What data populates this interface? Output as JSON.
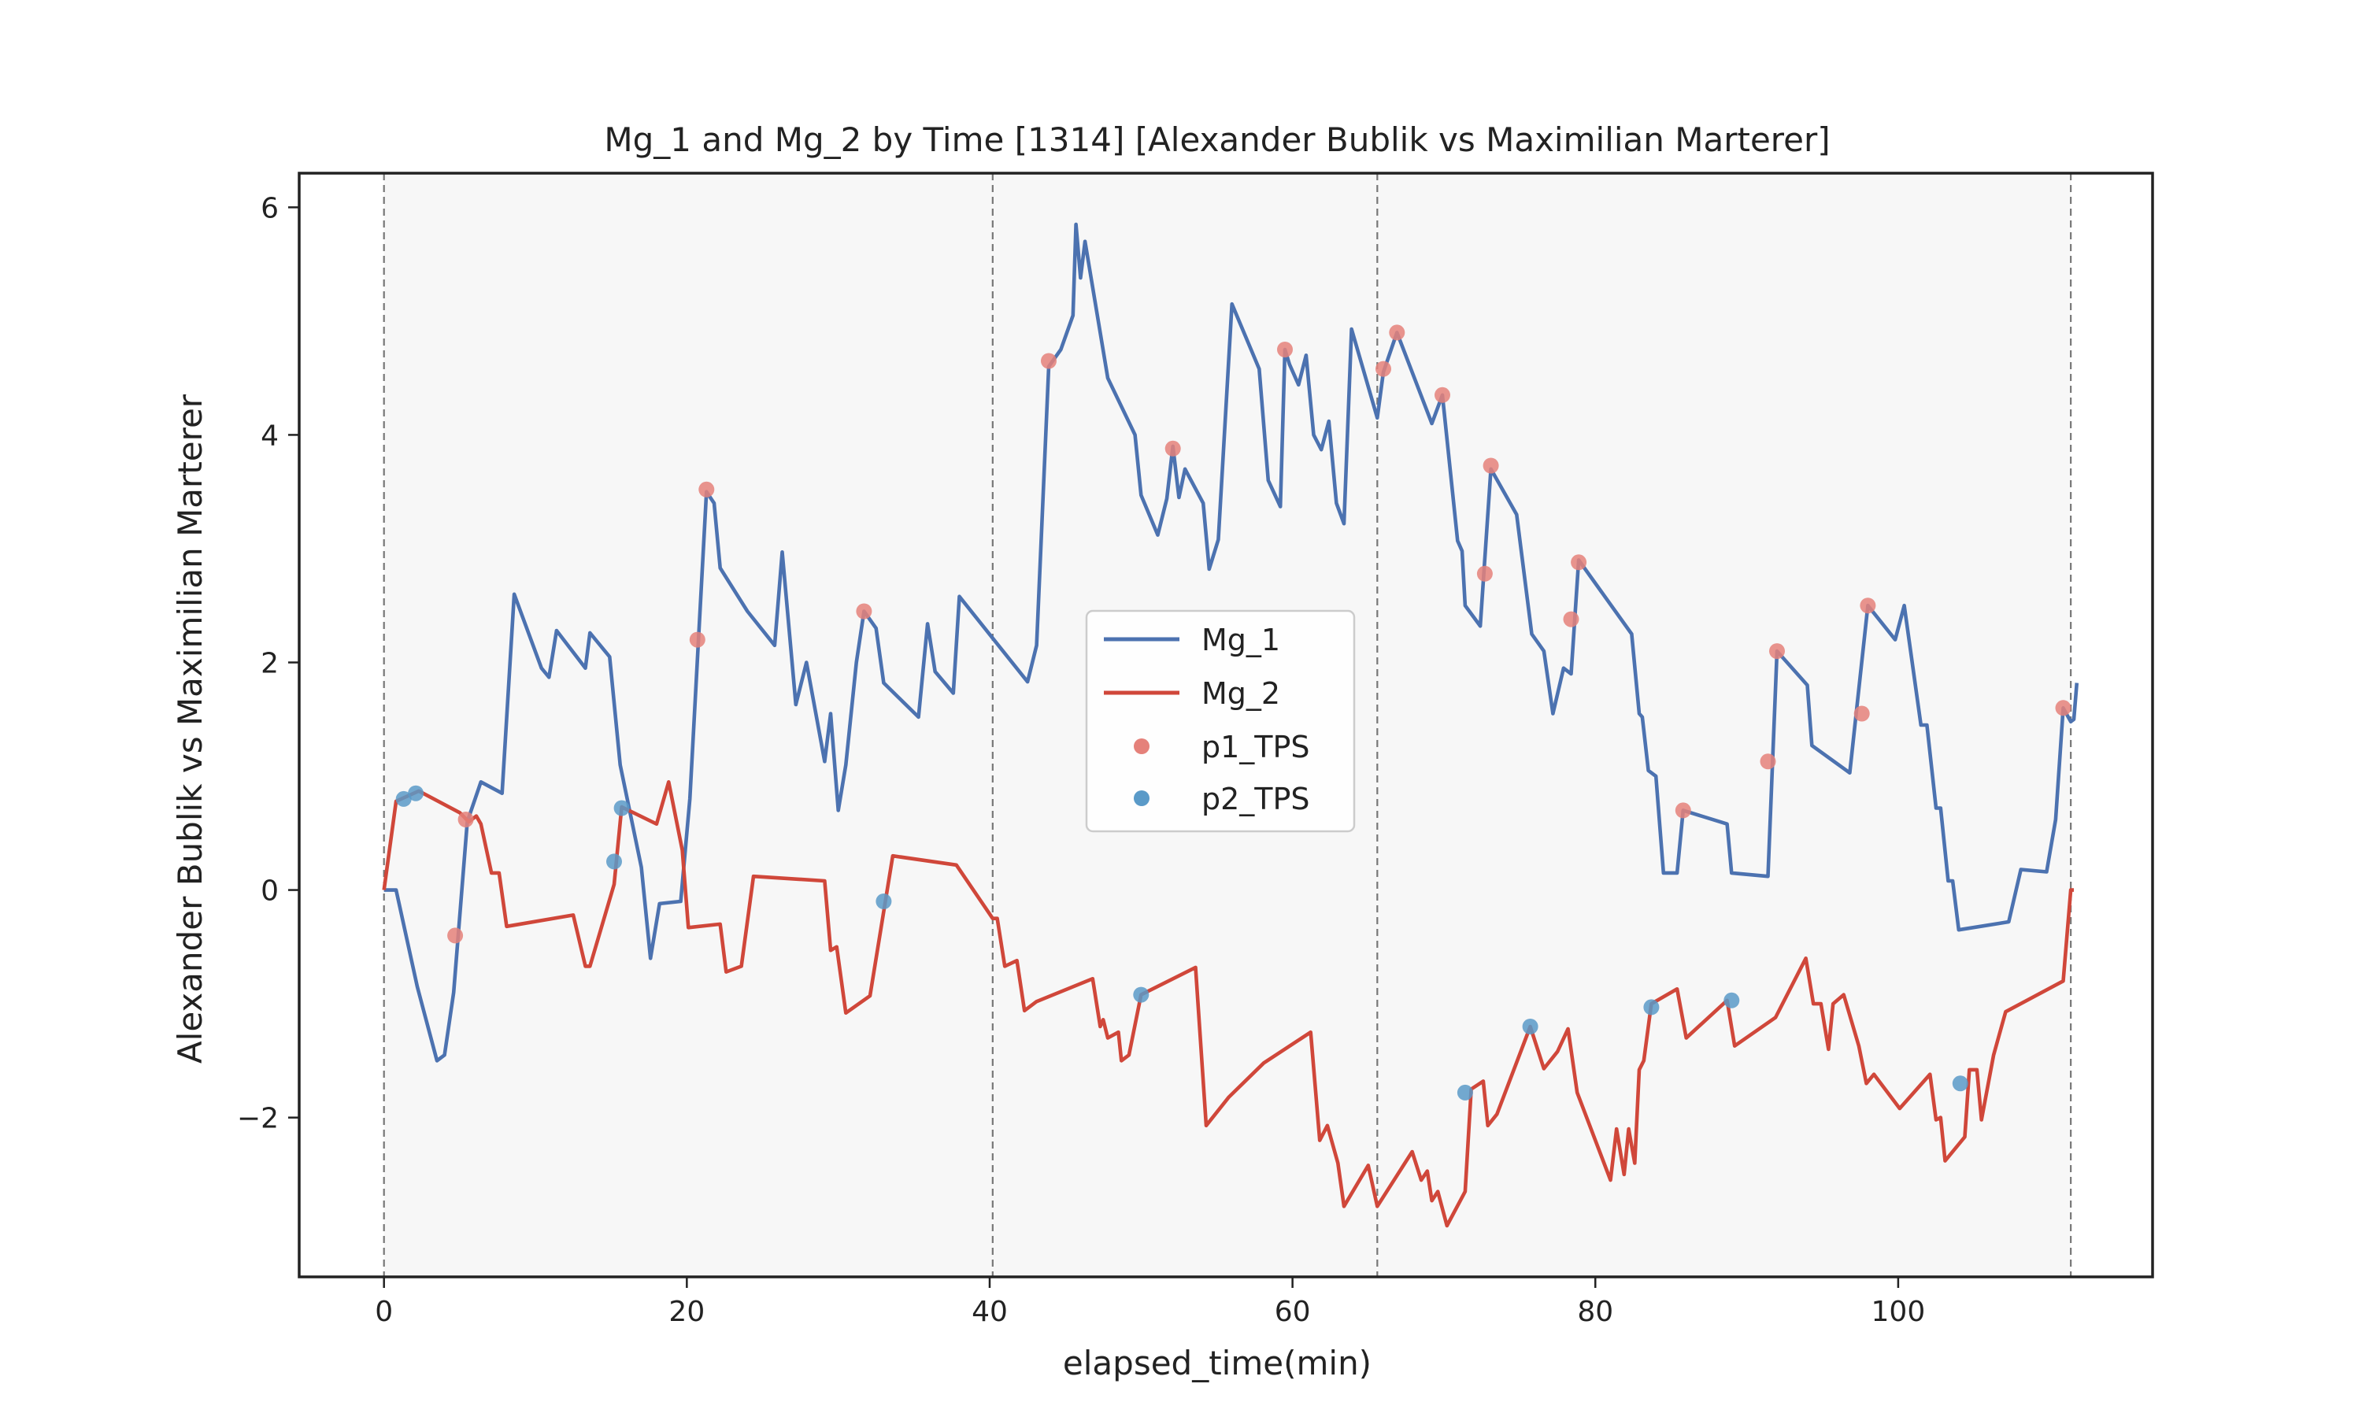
{
  "chart_data": {
    "type": "line",
    "title": "Mg_1 and Mg_2 by Time [1314] [Alexander Bublik vs Maximilian Marterer]",
    "xlabel": "elapsed_time(min)",
    "ylabel": "Alexander Bublik vs Maximilian Marterer",
    "xlim": [
      -5.6,
      116.8
    ],
    "ylim": [
      -3.4,
      6.3
    ],
    "xticks": [
      0,
      20,
      40,
      60,
      80,
      100
    ],
    "yticks": [
      -2,
      0,
      2,
      4,
      6
    ],
    "xtick_labels": [
      "0",
      "20",
      "40",
      "60",
      "80",
      "100"
    ],
    "ytick_labels": [
      "−2",
      "0",
      "2",
      "4",
      "6"
    ],
    "set_boundaries": [
      0,
      40.2,
      65.6,
      111.4
    ],
    "grid": false,
    "legend_position": "center",
    "colors": {
      "mg1": "#4c72b0",
      "mg2": "#d0473a",
      "p1_tps": "#e5817a",
      "p2_tps": "#5a9ac8",
      "shade": "#f7f7f7",
      "boundary": "#777777"
    },
    "series": [
      {
        "name": "Mg_1",
        "points": [
          [
            0,
            0
          ],
          [
            0.8,
            0
          ],
          [
            2.2,
            -0.85
          ],
          [
            3.5,
            -1.5
          ],
          [
            4.0,
            -1.45
          ],
          [
            4.6,
            -0.9
          ],
          [
            5.5,
            0.6
          ],
          [
            6.4,
            0.95
          ],
          [
            7.8,
            0.85
          ],
          [
            8.6,
            2.6
          ],
          [
            10.4,
            1.95
          ],
          [
            10.9,
            1.87
          ],
          [
            11.4,
            2.28
          ],
          [
            13.3,
            1.95
          ],
          [
            13.6,
            2.26
          ],
          [
            14.9,
            2.05
          ],
          [
            15.6,
            1.1
          ],
          [
            17.0,
            0.2
          ],
          [
            17.6,
            -0.6
          ],
          [
            18.2,
            -0.12
          ],
          [
            19.6,
            -0.1
          ],
          [
            20.2,
            0.8
          ],
          [
            21.3,
            3.5
          ],
          [
            21.8,
            3.4
          ],
          [
            22.2,
            2.83
          ],
          [
            24.0,
            2.45
          ],
          [
            25.8,
            2.15
          ],
          [
            26.3,
            2.97
          ],
          [
            27.2,
            1.63
          ],
          [
            27.9,
            2.0
          ],
          [
            29.1,
            1.13
          ],
          [
            29.5,
            1.55
          ],
          [
            30.0,
            0.7
          ],
          [
            30.5,
            1.1
          ],
          [
            31.2,
            2.0
          ],
          [
            31.7,
            2.45
          ],
          [
            32.5,
            2.3
          ],
          [
            33.0,
            1.82
          ],
          [
            35.3,
            1.52
          ],
          [
            35.9,
            2.34
          ],
          [
            36.4,
            1.92
          ],
          [
            37.6,
            1.73
          ],
          [
            38.0,
            2.58
          ],
          [
            42.5,
            1.83
          ],
          [
            43.1,
            2.15
          ],
          [
            43.9,
            4.6
          ],
          [
            44.7,
            4.75
          ],
          [
            45.5,
            5.05
          ],
          [
            45.7,
            5.85
          ],
          [
            46.0,
            5.38
          ],
          [
            46.3,
            5.7
          ],
          [
            47.8,
            4.5
          ],
          [
            49.6,
            4.0
          ],
          [
            50.0,
            3.47
          ],
          [
            51.1,
            3.12
          ],
          [
            51.7,
            3.44
          ],
          [
            52.1,
            3.9
          ],
          [
            52.5,
            3.45
          ],
          [
            52.9,
            3.7
          ],
          [
            54.1,
            3.4
          ],
          [
            54.5,
            2.82
          ],
          [
            55.1,
            3.08
          ],
          [
            56.0,
            5.15
          ],
          [
            57.8,
            4.58
          ],
          [
            58.4,
            3.6
          ],
          [
            59.2,
            3.37
          ],
          [
            59.5,
            4.75
          ],
          [
            59.8,
            4.62
          ],
          [
            60.4,
            4.44
          ],
          [
            60.9,
            4.7
          ],
          [
            61.4,
            4.0
          ],
          [
            61.9,
            3.87
          ],
          [
            62.4,
            4.12
          ],
          [
            62.9,
            3.4
          ],
          [
            63.4,
            3.22
          ],
          [
            63.9,
            4.93
          ],
          [
            65.6,
            4.15
          ],
          [
            66.0,
            4.55
          ],
          [
            66.9,
            4.9
          ],
          [
            69.2,
            4.1
          ],
          [
            69.9,
            4.35
          ],
          [
            70.9,
            3.07
          ],
          [
            71.2,
            2.98
          ],
          [
            71.4,
            2.5
          ],
          [
            72.4,
            2.32
          ],
          [
            73.1,
            3.7
          ],
          [
            74.8,
            3.3
          ],
          [
            75.8,
            2.25
          ],
          [
            76.6,
            2.1
          ],
          [
            77.2,
            1.55
          ],
          [
            77.9,
            1.95
          ],
          [
            78.4,
            1.9
          ],
          [
            78.9,
            2.9
          ],
          [
            82.4,
            2.25
          ],
          [
            82.9,
            1.55
          ],
          [
            83.1,
            1.52
          ],
          [
            83.5,
            1.05
          ],
          [
            84.0,
            1.0
          ],
          [
            84.5,
            0.15
          ],
          [
            85.4,
            0.15
          ],
          [
            85.8,
            0.7
          ],
          [
            88.7,
            0.58
          ],
          [
            89.0,
            0.15
          ],
          [
            91.4,
            0.12
          ],
          [
            92.0,
            2.1
          ],
          [
            94.0,
            1.8
          ],
          [
            94.3,
            1.27
          ],
          [
            96.8,
            1.03
          ],
          [
            98.0,
            2.5
          ],
          [
            99.8,
            2.2
          ],
          [
            100.4,
            2.5
          ],
          [
            101.5,
            1.45
          ],
          [
            101.9,
            1.45
          ],
          [
            102.5,
            0.72
          ],
          [
            102.8,
            0.72
          ],
          [
            103.3,
            0.08
          ],
          [
            103.6,
            0.08
          ],
          [
            104.0,
            -0.35
          ],
          [
            107.3,
            -0.28
          ],
          [
            108.1,
            0.18
          ],
          [
            109.8,
            0.16
          ],
          [
            110.4,
            0.62
          ],
          [
            110.9,
            1.6
          ],
          [
            111.4,
            1.48
          ],
          [
            111.6,
            1.5
          ],
          [
            111.8,
            1.82
          ]
        ]
      },
      {
        "name": "Mg_2",
        "points": [
          [
            0,
            0
          ],
          [
            0.8,
            0.78
          ],
          [
            2.3,
            0.87
          ],
          [
            5.0,
            0.68
          ],
          [
            5.6,
            0.6
          ],
          [
            6.1,
            0.65
          ],
          [
            6.4,
            0.58
          ],
          [
            7.1,
            0.15
          ],
          [
            7.6,
            0.15
          ],
          [
            8.1,
            -0.32
          ],
          [
            12.5,
            -0.22
          ],
          [
            13.3,
            -0.67
          ],
          [
            13.6,
            -0.67
          ],
          [
            15.2,
            0.05
          ],
          [
            15.7,
            0.73
          ],
          [
            18.0,
            0.58
          ],
          [
            18.8,
            0.95
          ],
          [
            19.7,
            0.35
          ],
          [
            20.1,
            -0.33
          ],
          [
            22.2,
            -0.3
          ],
          [
            22.6,
            -0.72
          ],
          [
            23.6,
            -0.67
          ],
          [
            24.4,
            0.12
          ],
          [
            29.1,
            0.08
          ],
          [
            29.5,
            -0.53
          ],
          [
            29.9,
            -0.5
          ],
          [
            30.5,
            -1.08
          ],
          [
            32.1,
            -0.93
          ],
          [
            33.6,
            0.3
          ],
          [
            37.8,
            0.22
          ],
          [
            40.2,
            -0.25
          ],
          [
            40.5,
            -0.25
          ],
          [
            41.0,
            -0.67
          ],
          [
            41.8,
            -0.62
          ],
          [
            42.3,
            -1.06
          ],
          [
            43.1,
            -0.98
          ],
          [
            46.8,
            -0.78
          ],
          [
            47.3,
            -1.2
          ],
          [
            47.5,
            -1.14
          ],
          [
            47.8,
            -1.3
          ],
          [
            48.5,
            -1.25
          ],
          [
            48.7,
            -1.5
          ],
          [
            49.2,
            -1.45
          ],
          [
            50.0,
            -0.92
          ],
          [
            53.6,
            -0.68
          ],
          [
            54.3,
            -2.07
          ],
          [
            55.8,
            -1.82
          ],
          [
            58.1,
            -1.52
          ],
          [
            61.2,
            -1.25
          ],
          [
            61.8,
            -2.2
          ],
          [
            62.3,
            -2.07
          ],
          [
            63.0,
            -2.4
          ],
          [
            63.4,
            -2.78
          ],
          [
            65.0,
            -2.42
          ],
          [
            65.6,
            -2.78
          ],
          [
            67.9,
            -2.3
          ],
          [
            68.5,
            -2.55
          ],
          [
            68.9,
            -2.47
          ],
          [
            69.2,
            -2.73
          ],
          [
            69.6,
            -2.65
          ],
          [
            70.2,
            -2.95
          ],
          [
            71.4,
            -2.65
          ],
          [
            71.8,
            -1.75
          ],
          [
            72.6,
            -1.68
          ],
          [
            72.9,
            -2.07
          ],
          [
            73.5,
            -1.97
          ],
          [
            75.7,
            -1.2
          ],
          [
            76.6,
            -1.57
          ],
          [
            77.5,
            -1.42
          ],
          [
            78.2,
            -1.22
          ],
          [
            78.8,
            -1.78
          ],
          [
            81.0,
            -2.55
          ],
          [
            81.4,
            -2.1
          ],
          [
            81.9,
            -2.5
          ],
          [
            82.2,
            -2.1
          ],
          [
            82.6,
            -2.4
          ],
          [
            82.9,
            -1.58
          ],
          [
            83.2,
            -1.5
          ],
          [
            83.7,
            -1.0
          ],
          [
            85.4,
            -0.87
          ],
          [
            86.0,
            -1.3
          ],
          [
            88.7,
            -0.97
          ],
          [
            89.2,
            -1.37
          ],
          [
            91.9,
            -1.12
          ],
          [
            93.9,
            -0.6
          ],
          [
            94.4,
            -1.0
          ],
          [
            94.9,
            -1.0
          ],
          [
            95.4,
            -1.4
          ],
          [
            95.7,
            -1.0
          ],
          [
            96.4,
            -0.92
          ],
          [
            97.4,
            -1.37
          ],
          [
            97.9,
            -1.7
          ],
          [
            98.4,
            -1.62
          ],
          [
            100.1,
            -1.92
          ],
          [
            102.1,
            -1.62
          ],
          [
            102.5,
            -2.02
          ],
          [
            102.8,
            -2.0
          ],
          [
            103.1,
            -2.38
          ],
          [
            104.4,
            -2.17
          ],
          [
            104.7,
            -1.58
          ],
          [
            105.2,
            -1.58
          ],
          [
            105.5,
            -2.02
          ],
          [
            106.3,
            -1.45
          ],
          [
            107.1,
            -1.07
          ],
          [
            110.9,
            -0.8
          ],
          [
            111.4,
            0.0
          ],
          [
            111.6,
            0.0
          ]
        ]
      }
    ],
    "scatter": [
      {
        "name": "p1_TPS",
        "points": [
          [
            4.7,
            -0.4
          ],
          [
            5.4,
            0.62
          ],
          [
            20.7,
            2.2
          ],
          [
            21.3,
            3.52
          ],
          [
            31.7,
            2.45
          ],
          [
            43.9,
            4.65
          ],
          [
            52.1,
            3.88
          ],
          [
            59.5,
            4.75
          ],
          [
            66.0,
            4.58
          ],
          [
            66.9,
            4.9
          ],
          [
            69.9,
            4.35
          ],
          [
            72.7,
            2.78
          ],
          [
            73.1,
            3.73
          ],
          [
            78.4,
            2.38
          ],
          [
            78.9,
            2.88
          ],
          [
            85.8,
            0.7
          ],
          [
            91.4,
            1.13
          ],
          [
            92.0,
            2.1
          ],
          [
            97.6,
            1.55
          ],
          [
            98.0,
            2.5
          ],
          [
            110.9,
            1.6
          ]
        ]
      },
      {
        "name": "p2_TPS",
        "points": [
          [
            1.3,
            0.8
          ],
          [
            2.1,
            0.85
          ],
          [
            15.2,
            0.25
          ],
          [
            15.7,
            0.72
          ],
          [
            33.0,
            -0.1
          ],
          [
            50.0,
            -0.92
          ],
          [
            71.4,
            -1.78
          ],
          [
            75.7,
            -1.2
          ],
          [
            83.7,
            -1.03
          ],
          [
            89.0,
            -0.97
          ],
          [
            104.1,
            -1.7
          ]
        ]
      }
    ]
  }
}
